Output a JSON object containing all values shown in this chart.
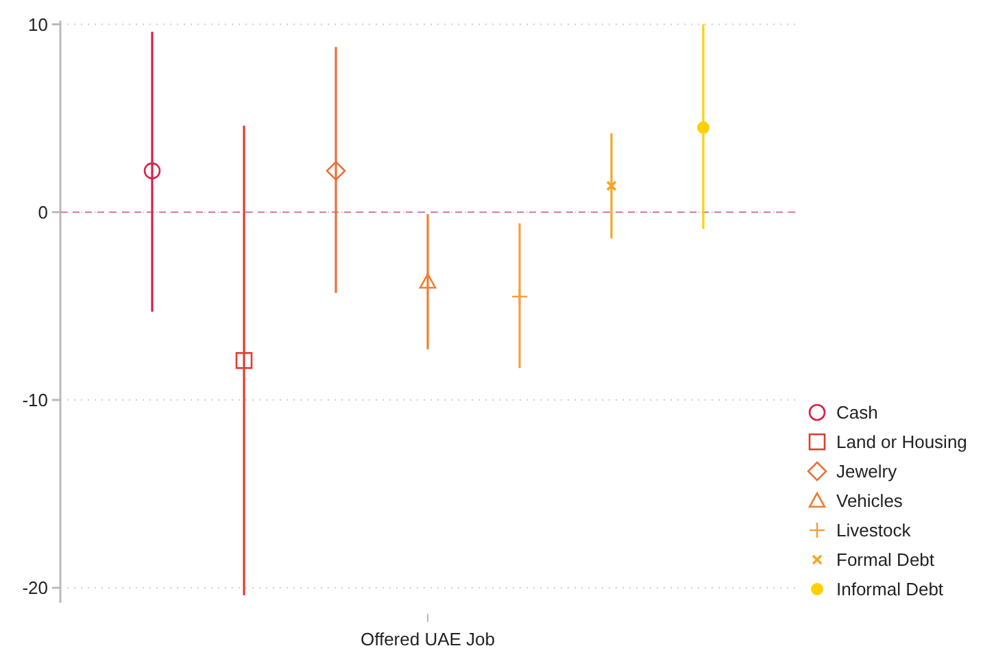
{
  "chart_data": {
    "type": "scatter",
    "categories": [
      "Offered UAE Job"
    ],
    "ylim": [
      -20.8,
      10.2
    ],
    "yticks": [
      -20,
      -10,
      0,
      10
    ],
    "grid": "y",
    "legend": "right",
    "ref_lines": [
      {
        "axis": "y",
        "value": 0,
        "color": "#d98cb3",
        "line_style": "dashed"
      }
    ],
    "series": [
      {
        "name": "Cash",
        "color": "#d6204a",
        "marker": "circle",
        "values": [
          2.2
        ],
        "errors": [
          [
            -5.3,
            9.6
          ]
        ]
      },
      {
        "name": "Land or Housing",
        "color": "#e03c31",
        "marker": "square",
        "values": [
          -7.9
        ],
        "errors": [
          [
            -20.4,
            4.6
          ]
        ]
      },
      {
        "name": "Jewelry",
        "color": "#e8703a",
        "marker": "diamond",
        "values": [
          2.2
        ],
        "errors": [
          [
            -4.3,
            8.8
          ]
        ]
      },
      {
        "name": "Vehicles",
        "color": "#ee7f2e",
        "marker": "triangle",
        "values": [
          -3.7
        ],
        "errors": [
          [
            -7.3,
            -0.1
          ]
        ]
      },
      {
        "name": "Livestock",
        "color": "#f7a040",
        "marker": "cross",
        "values": [
          -4.5
        ],
        "errors": [
          [
            -8.3,
            -0.6
          ]
        ]
      },
      {
        "name": "Formal Debt",
        "color": "#f5a623",
        "marker": "x",
        "values": [
          1.4
        ],
        "errors": [
          [
            -1.4,
            4.2
          ]
        ]
      },
      {
        "name": "Informal Debt",
        "color": "#ffd000",
        "marker": "dot",
        "values": [
          4.5
        ],
        "errors": [
          [
            -0.9,
            10
          ]
        ]
      }
    ]
  }
}
